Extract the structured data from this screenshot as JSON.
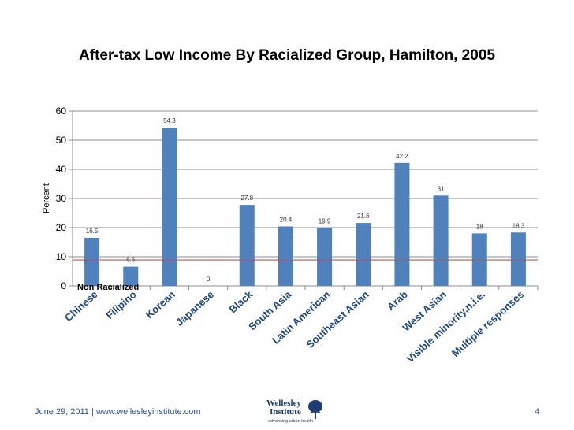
{
  "chart_data": {
    "type": "bar",
    "title": "After-tax Low Income By Racialized Group,  Hamilton, 2005",
    "ylabel": "Percent",
    "xlabel": "",
    "ylim": [
      0,
      60
    ],
    "yticks": [
      0,
      10,
      20,
      30,
      40,
      50,
      60
    ],
    "categories": [
      "Chinese",
      "Filipino",
      "Korean",
      "Japanese",
      "Black",
      "South Asia",
      "Latin American",
      "Southeast Asian",
      "Arab",
      "West Asian",
      "Visible minority,n.i.e.",
      "Multiple responses"
    ],
    "values": [
      16.5,
      6.6,
      54.3,
      0,
      27.8,
      20.4,
      19.9,
      21.6,
      42.2,
      31,
      18,
      18.3
    ],
    "value_labels": [
      "16.5",
      "6.6",
      "54.3",
      "0",
      "27.8",
      "20.4",
      "19.9",
      "21.6",
      "42.2",
      "31",
      "18",
      "18.3"
    ],
    "reference_line": {
      "label": "Non Racialized",
      "value": 8.9,
      "color": "#c0504d"
    },
    "bar_color": "#4f81bd",
    "grid": true
  },
  "footer": {
    "date": "June 29, 2011",
    "separator": "|",
    "url": "www.wellesleyinstitute.com",
    "page_number": "4"
  },
  "logo": {
    "name_line1": "Wellesley",
    "name_line2": "Institute",
    "tagline": "advancing urban health"
  }
}
